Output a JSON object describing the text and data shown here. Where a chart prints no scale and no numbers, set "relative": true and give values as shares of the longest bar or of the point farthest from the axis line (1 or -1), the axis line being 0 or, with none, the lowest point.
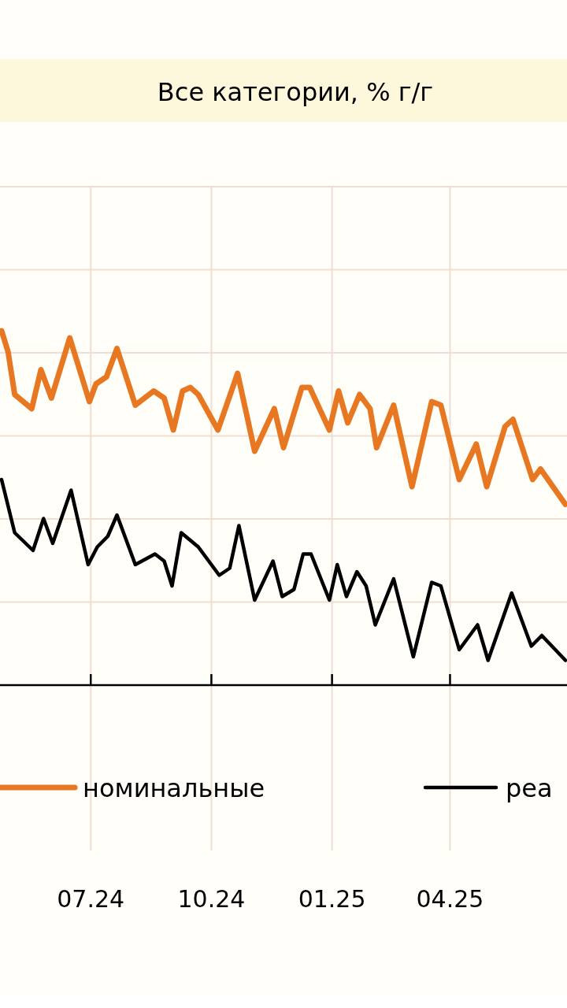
{
  "chart_data": {
    "type": "line",
    "title": "Все категории, % г/г",
    "relative": true,
    "legend": "bottom",
    "grid": true,
    "xlim": [
      "2024-04-24",
      "2025-06-28"
    ],
    "xticks": [
      {
        "value": "2024-07-01",
        "label": "07.24"
      },
      {
        "value": "2024-10-01",
        "label": "10.24"
      },
      {
        "value": "2025-01-01",
        "label": "01.25"
      },
      {
        "value": "2025-04-01",
        "label": "04.25"
      }
    ],
    "series": [
      {
        "name": "номинальные",
        "color": "#e87722",
        "x": [
          "2024-04-24",
          "2024-04-29",
          "2024-05-04",
          "2024-05-17",
          "2024-05-24",
          "2024-06-01",
          "2024-06-15",
          "2024-06-30",
          "2024-07-05",
          "2024-07-13",
          "2024-07-21",
          "2024-08-04",
          "2024-08-18",
          "2024-08-26",
          "2024-09-02",
          "2024-09-09",
          "2024-09-15",
          "2024-09-21",
          "2024-10-06",
          "2024-10-21",
          "2024-11-03",
          "2024-11-18",
          "2024-11-25",
          "2024-12-09",
          "2024-12-15",
          "2024-12-30",
          "2025-01-06",
          "2025-01-13",
          "2025-01-22",
          "2025-01-30",
          "2025-02-04",
          "2025-02-17",
          "2025-03-03",
          "2025-03-18",
          "2025-03-25",
          "2025-04-08",
          "2025-04-21",
          "2025-04-29",
          "2025-05-13",
          "2025-05-19",
          "2025-06-03",
          "2025-06-09",
          "2025-06-28"
        ],
        "values": [
          1.0,
          0.94,
          0.82,
          0.78,
          0.89,
          0.81,
          0.98,
          0.8,
          0.85,
          0.87,
          0.95,
          0.79,
          0.83,
          0.81,
          0.72,
          0.83,
          0.84,
          0.82,
          0.72,
          0.88,
          0.66,
          0.78,
          0.67,
          0.84,
          0.84,
          0.72,
          0.83,
          0.74,
          0.82,
          0.78,
          0.67,
          0.79,
          0.56,
          0.8,
          0.79,
          0.58,
          0.68,
          0.56,
          0.73,
          0.75,
          0.58,
          0.61,
          0.51
        ]
      },
      {
        "name": "реа",
        "color": "#000000",
        "x": [
          "2024-04-24",
          "2024-05-04",
          "2024-05-18",
          "2024-05-26",
          "2024-06-02",
          "2024-06-16",
          "2024-06-29",
          "2024-07-06",
          "2024-07-14",
          "2024-07-21",
          "2024-08-04",
          "2024-08-19",
          "2024-08-26",
          "2024-09-01",
          "2024-09-08",
          "2024-09-21",
          "2024-10-07",
          "2024-10-15",
          "2024-10-22",
          "2024-11-03",
          "2024-11-17",
          "2024-11-24",
          "2024-12-03",
          "2024-12-10",
          "2024-12-16",
          "2024-12-30",
          "2025-01-05",
          "2025-01-12",
          "2025-01-20",
          "2025-01-27",
          "2025-02-03",
          "2025-02-17",
          "2025-03-04",
          "2025-03-18",
          "2025-03-25",
          "2025-04-08",
          "2025-04-22",
          "2025-04-30",
          "2025-05-18",
          "2025-06-02",
          "2025-06-10",
          "2025-06-28"
        ],
        "values": [
          0.58,
          0.43,
          0.38,
          0.47,
          0.4,
          0.55,
          0.34,
          0.39,
          0.42,
          0.48,
          0.34,
          0.37,
          0.35,
          0.28,
          0.43,
          0.39,
          0.31,
          0.33,
          0.45,
          0.24,
          0.35,
          0.25,
          0.27,
          0.37,
          0.37,
          0.24,
          0.34,
          0.25,
          0.32,
          0.28,
          0.17,
          0.3,
          0.08,
          0.29,
          0.28,
          0.1,
          0.17,
          0.07,
          0.26,
          0.11,
          0.14,
          0.07
        ]
      }
    ]
  }
}
